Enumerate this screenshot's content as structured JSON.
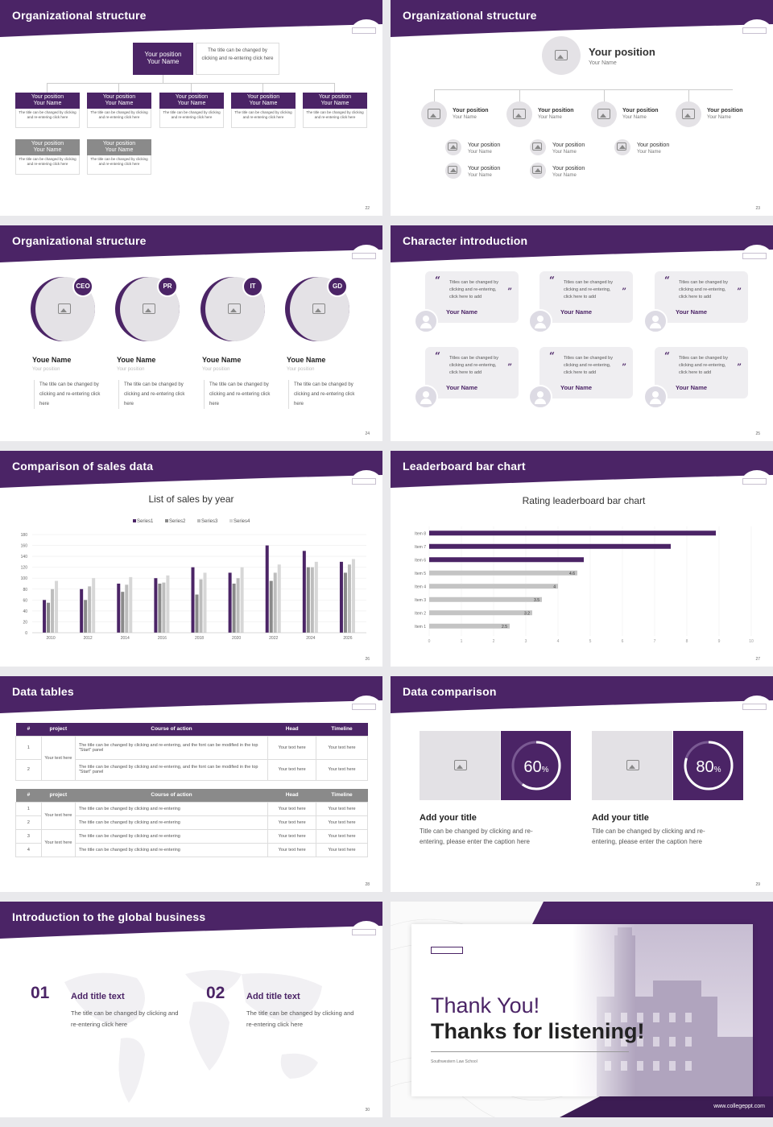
{
  "colors": {
    "primary": "#4b2466",
    "grey": "#8a8a8a",
    "light": "#e4e2e6"
  },
  "slides": {
    "s1": {
      "title": "Organizational structure",
      "page": "22",
      "top": {
        "position": "Your position",
        "name": "Your Name",
        "desc": "The title can be changed by clicking and re-entering click here"
      },
      "row1": [
        {
          "position": "Your position",
          "name": "Your Name",
          "desc": "The title can be changed by clicking and re-entering click here"
        },
        {
          "position": "Your position",
          "name": "Your Name",
          "desc": "The title can be changed by clicking and re-entering click here"
        },
        {
          "position": "Your position",
          "name": "Your Name",
          "desc": "The title can be changed by clicking and re-entering click here"
        },
        {
          "position": "Your position",
          "name": "Your Name",
          "desc": "The title can be changed by clicking and re-entering click here"
        },
        {
          "position": "Your position",
          "name": "Your Name",
          "desc": "The title can be changed by clicking and re-entering click here"
        }
      ],
      "row2": [
        {
          "position": "Your position",
          "name": "Your Name",
          "desc": "The title can be changed by clicking and re-entering click here"
        },
        {
          "position": "Your position",
          "name": "Your Name",
          "desc": "The title can be changed by clicking and re-entering click here"
        }
      ]
    },
    "s2": {
      "title": "Organizational structure",
      "page": "23",
      "top": {
        "position": "Your position",
        "name": "Your Name"
      },
      "mid": [
        {
          "position": "Your position",
          "name": "Your Name"
        },
        {
          "position": "Your position",
          "name": "Your Name"
        },
        {
          "position": "Your position",
          "name": "Your Name"
        },
        {
          "position": "Your position",
          "name": "Your Name"
        }
      ],
      "sub": [
        {
          "position": "Your position",
          "name": "Your Name"
        },
        {
          "position": "Your position",
          "name": "Your Name"
        },
        {
          "position": "Your position",
          "name": "Your Name"
        },
        {
          "position": "Your position",
          "name": "Your Name"
        },
        {
          "position": "Your position",
          "name": "Your Name"
        }
      ]
    },
    "s3": {
      "title": "Organizational structure",
      "page": "24",
      "people": [
        {
          "role": "CEO",
          "name": "Youe Name",
          "position": "Your position",
          "desc": "The title can be changed by clicking and re-entering click here"
        },
        {
          "role": "PR",
          "name": "Youe Name",
          "position": "Your position",
          "desc": "The title can be changed by clicking and re-entering click here"
        },
        {
          "role": "IT",
          "name": "Youe Name",
          "position": "Your position",
          "desc": "The title can be changed by clicking and re-entering click here"
        },
        {
          "role": "GD",
          "name": "Youe Name",
          "position": "Your position",
          "desc": "The title can be changed by clicking and re-entering click here"
        }
      ]
    },
    "s4": {
      "title": "Character introduction",
      "page": "25",
      "cards": [
        {
          "text": "Titles can be changed by clicking and re-entering, click here to add",
          "name": "Your Name"
        },
        {
          "text": "Titles can be changed by clicking and re-entering, click here to add",
          "name": "Your Name"
        },
        {
          "text": "Titles can be changed by clicking and re-entering, click here to add",
          "name": "Your Name"
        },
        {
          "text": "Titles can be changed by clicking and re-entering, click here to add",
          "name": "Your Name"
        },
        {
          "text": "Titles can be changed by clicking and re-entering, click here to add",
          "name": "Your Name"
        },
        {
          "text": "Titles can be changed by clicking and re-entering, click here to add",
          "name": "Your Name"
        }
      ]
    },
    "s5": {
      "title": "Comparison of sales data",
      "page": "26"
    },
    "s6": {
      "title": "Leaderboard bar chart",
      "page": "27"
    },
    "s7": {
      "title": "Data tables",
      "page": "28",
      "headers": [
        "#",
        "project",
        "Course of action",
        "Head",
        "Timeline"
      ],
      "t1": {
        "project": "Your text here",
        "rows": [
          {
            "n": "1",
            "action": "The title can be changed by clicking and re-entering, and the font can be modified in the top \"Start\" panel",
            "head": "Your text here",
            "time": "Your text here"
          },
          {
            "n": "2",
            "action": "The title can be changed by clicking and re-entering, and the font can be modified in the top \"Start\" panel",
            "head": "Your text here",
            "time": "Your text here"
          }
        ]
      },
      "t2": {
        "projects": [
          "Your text here",
          "Your text here"
        ],
        "rows": [
          {
            "n": "1",
            "action": "The title can be changed by clicking and re-entering",
            "head": "Your text here",
            "time": "Your text here"
          },
          {
            "n": "2",
            "action": "The title can be changed by clicking and re-entering",
            "head": "Your text here",
            "time": "Your text here"
          },
          {
            "n": "3",
            "action": "The title can be changed by clicking and re-entering",
            "head": "Your text here",
            "time": "Your text here"
          },
          {
            "n": "4",
            "action": "The title can be changed by clicking and re-entering",
            "head": "Your text here",
            "time": "Your text here"
          }
        ]
      }
    },
    "s8": {
      "title": "Data comparison",
      "page": "29",
      "items": [
        {
          "pct": "60",
          "pct_value": 60,
          "title": "Add your title",
          "desc": "Title can be changed by clicking and re-entering, please enter the caption here"
        },
        {
          "pct": "80",
          "pct_value": 80,
          "title": "Add your title",
          "desc": "Title can be changed by clicking and re-entering, please enter the caption here"
        }
      ]
    },
    "s9": {
      "title": "Introduction to the global business",
      "page": "30",
      "items": [
        {
          "num": "01",
          "title": "Add title text",
          "desc": "The title can be changed by clicking and re-entering click here"
        },
        {
          "num": "02",
          "title": "Add title text",
          "desc": "The title can be changed by clicking and re-entering click here"
        }
      ]
    },
    "s10": {
      "line1": "Thank You!",
      "line2": "Thanks for listening!",
      "school": "Southwestern Law School",
      "website": "www.collegeppt.com"
    }
  },
  "chart_data": [
    {
      "type": "bar",
      "title": "List of sales by year",
      "categories": [
        "2010",
        "2012",
        "2014",
        "2016",
        "2018",
        "2020",
        "2022",
        "2024",
        "2026"
      ],
      "series": [
        {
          "name": "Series1",
          "values": [
            60,
            80,
            90,
            100,
            120,
            110,
            160,
            150,
            130
          ]
        },
        {
          "name": "Series2",
          "values": [
            55,
            60,
            75,
            90,
            70,
            90,
            95,
            120,
            110
          ]
        },
        {
          "name": "Series3",
          "values": [
            80,
            85,
            88,
            92,
            98,
            100,
            110,
            120,
            125
          ]
        },
        {
          "name": "Series4",
          "values": [
            95,
            100,
            102,
            105,
            110,
            120,
            125,
            130,
            135
          ]
        }
      ],
      "ylim": [
        0,
        180
      ],
      "yticks": [
        "0",
        "20",
        "40",
        "60",
        "80",
        "100",
        "120",
        "140",
        "160",
        "180"
      ],
      "legend": "top"
    },
    {
      "type": "bar",
      "orientation": "horizontal",
      "title": "Rating leaderboard bar chart",
      "categories": [
        "Item 1",
        "Item 2",
        "Item 3",
        "Item 4",
        "Item 5",
        "Item 6",
        "Item 7",
        "Item 8"
      ],
      "values": [
        2.5,
        3.2,
        3.5,
        4,
        4.6,
        4.8,
        7.5,
        8.9
      ],
      "labels": [
        "2.5",
        "3.2",
        "3.5",
        "4",
        "4.6",
        "",
        "",
        ""
      ],
      "xlim": [
        0,
        10
      ],
      "xticks": [
        "0",
        "1",
        "2",
        "3",
        "4",
        "5",
        "6",
        "7",
        "8",
        "9",
        "10"
      ]
    }
  ]
}
